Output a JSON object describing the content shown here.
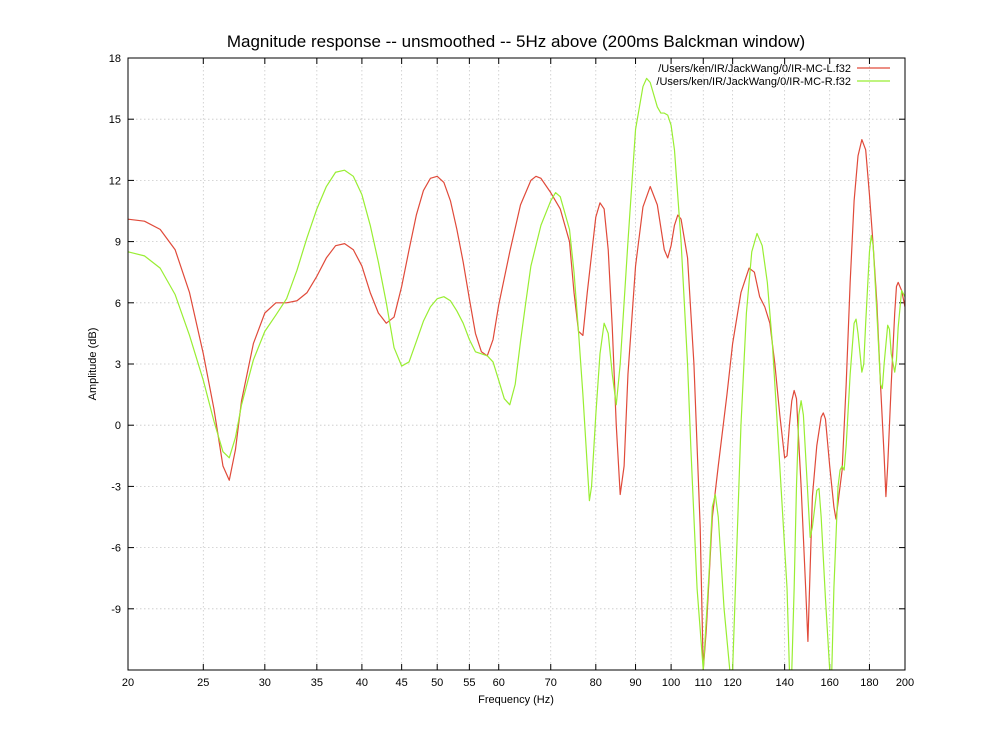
{
  "chart_data": {
    "type": "line",
    "title": "Magnitude response -- unsmoothed -- 5Hz above (200ms Balckman window)",
    "xlabel": "Frequency (Hz)",
    "ylabel": "Amplitude (dB)",
    "xscale": "log",
    "xlim": [
      20,
      200
    ],
    "ylim": [
      -12,
      18
    ],
    "xticks": [
      20,
      25,
      30,
      35,
      40,
      45,
      50,
      55,
      60,
      70,
      80,
      90,
      100,
      110,
      120,
      140,
      160,
      180,
      200
    ],
    "yticks": [
      -9,
      -6,
      -3,
      0,
      3,
      6,
      9,
      12,
      15,
      18
    ],
    "grid": true,
    "legend_position": "top-right",
    "series": [
      {
        "name": "/Users/ken/IR/JackWang/0/IR-MC-L.f32",
        "color": "#e04a3a",
        "points": [
          [
            20,
            10.1
          ],
          [
            21,
            10.0
          ],
          [
            22,
            9.6
          ],
          [
            23,
            8.6
          ],
          [
            24,
            6.5
          ],
          [
            25,
            3.5
          ],
          [
            25.8,
            0.8
          ],
          [
            26.5,
            -2.0
          ],
          [
            27,
            -2.7
          ],
          [
            27.5,
            -1.2
          ],
          [
            28,
            1.2
          ],
          [
            29,
            4.0
          ],
          [
            30,
            5.5
          ],
          [
            31,
            6.0
          ],
          [
            32,
            6.0
          ],
          [
            33,
            6.1
          ],
          [
            34,
            6.5
          ],
          [
            35,
            7.3
          ],
          [
            36,
            8.2
          ],
          [
            37,
            8.8
          ],
          [
            38,
            8.9
          ],
          [
            39,
            8.6
          ],
          [
            40,
            7.8
          ],
          [
            41,
            6.5
          ],
          [
            42,
            5.5
          ],
          [
            43,
            5.0
          ],
          [
            44,
            5.3
          ],
          [
            45,
            6.8
          ],
          [
            46,
            8.6
          ],
          [
            47,
            10.3
          ],
          [
            48,
            11.5
          ],
          [
            49,
            12.1
          ],
          [
            50,
            12.2
          ],
          [
            51,
            11.9
          ],
          [
            52,
            11.0
          ],
          [
            53,
            9.6
          ],
          [
            54,
            8.0
          ],
          [
            55,
            6.2
          ],
          [
            56,
            4.5
          ],
          [
            57,
            3.6
          ],
          [
            58,
            3.4
          ],
          [
            59,
            4.2
          ],
          [
            60,
            5.9
          ],
          [
            62,
            8.5
          ],
          [
            64,
            10.8
          ],
          [
            66,
            12.0
          ],
          [
            67,
            12.2
          ],
          [
            68,
            12.1
          ],
          [
            70,
            11.4
          ],
          [
            72,
            10.6
          ],
          [
            74,
            9.0
          ],
          [
            75,
            6.5
          ],
          [
            76,
            4.6
          ],
          [
            77,
            4.4
          ],
          [
            78,
            6.5
          ],
          [
            80,
            10.2
          ],
          [
            81,
            10.9
          ],
          [
            82,
            10.6
          ],
          [
            83,
            8.6
          ],
          [
            84,
            4.8
          ],
          [
            85,
            0.0
          ],
          [
            86,
            -3.4
          ],
          [
            87,
            -2.0
          ],
          [
            88,
            2.5
          ],
          [
            90,
            7.8
          ],
          [
            92,
            10.7
          ],
          [
            94,
            11.7
          ],
          [
            96,
            10.8
          ],
          [
            98,
            8.6
          ],
          [
            99,
            8.2
          ],
          [
            100,
            8.8
          ],
          [
            101,
            9.8
          ],
          [
            102,
            10.3
          ],
          [
            103,
            10.1
          ],
          [
            105,
            8.2
          ],
          [
            107,
            3.0
          ],
          [
            109,
            -5.0
          ],
          [
            110,
            -12.0
          ],
          [
            111,
            -10.0
          ],
          [
            113,
            -4.5
          ],
          [
            115,
            -2.0
          ],
          [
            118,
            1.5
          ],
          [
            120,
            4.0
          ],
          [
            123,
            6.5
          ],
          [
            126,
            7.7
          ],
          [
            128,
            7.5
          ],
          [
            130,
            6.3
          ],
          [
            132,
            5.8
          ],
          [
            134,
            5.0
          ],
          [
            136,
            3.0
          ],
          [
            138,
            0.5
          ],
          [
            140,
            -1.6
          ],
          [
            141,
            -1.5
          ],
          [
            142,
            0.0
          ],
          [
            143,
            1.2
          ],
          [
            144,
            1.7
          ],
          [
            145,
            1.3
          ],
          [
            147,
            -3.0
          ],
          [
            149,
            -8.0
          ],
          [
            150,
            -10.6
          ],
          [
            151,
            -7.0
          ],
          [
            152,
            -3.5
          ],
          [
            154,
            -1.0
          ],
          [
            156,
            0.4
          ],
          [
            157,
            0.6
          ],
          [
            158,
            0.3
          ],
          [
            160,
            -2.0
          ],
          [
            162,
            -4.0
          ],
          [
            163,
            -4.6
          ],
          [
            164,
            -3.8
          ],
          [
            166,
            -2.2
          ],
          [
            168,
            2.0
          ],
          [
            170,
            7.0
          ],
          [
            172,
            11.0
          ],
          [
            174,
            13.2
          ],
          [
            176,
            14.0
          ],
          [
            178,
            13.5
          ],
          [
            180,
            11.3
          ],
          [
            182,
            8.8
          ],
          [
            184,
            6.0
          ],
          [
            186,
            2.0
          ],
          [
            188,
            -1.5
          ],
          [
            189,
            -3.5
          ],
          [
            190,
            -2.0
          ],
          [
            192,
            2.0
          ],
          [
            194,
            5.5
          ],
          [
            195,
            6.8
          ],
          [
            196,
            7.0
          ],
          [
            198,
            6.6
          ],
          [
            200,
            5.8
          ]
        ]
      },
      {
        "name": "/Users/ken/IR/JackWang/0/IR-MC-R.f32",
        "color": "#99ee33",
        "points": [
          [
            20,
            8.5
          ],
          [
            21,
            8.3
          ],
          [
            22,
            7.7
          ],
          [
            23,
            6.4
          ],
          [
            24,
            4.4
          ],
          [
            25,
            2.2
          ],
          [
            25.8,
            0.2
          ],
          [
            26.5,
            -1.3
          ],
          [
            27,
            -1.6
          ],
          [
            27.5,
            -0.6
          ],
          [
            28,
            1.0
          ],
          [
            29,
            3.2
          ],
          [
            30,
            4.6
          ],
          [
            31,
            5.4
          ],
          [
            32,
            6.2
          ],
          [
            33,
            7.6
          ],
          [
            34,
            9.2
          ],
          [
            35,
            10.6
          ],
          [
            36,
            11.7
          ],
          [
            37,
            12.4
          ],
          [
            38,
            12.5
          ],
          [
            39,
            12.2
          ],
          [
            40,
            11.3
          ],
          [
            41,
            9.8
          ],
          [
            42,
            8.0
          ],
          [
            43,
            6.0
          ],
          [
            44,
            3.8
          ],
          [
            45,
            2.9
          ],
          [
            46,
            3.1
          ],
          [
            47,
            4.1
          ],
          [
            48,
            5.1
          ],
          [
            49,
            5.8
          ],
          [
            50,
            6.2
          ],
          [
            51,
            6.3
          ],
          [
            52,
            6.1
          ],
          [
            53,
            5.6
          ],
          [
            54,
            5.0
          ],
          [
            55,
            4.2
          ],
          [
            56,
            3.6
          ],
          [
            57,
            3.5
          ],
          [
            58,
            3.4
          ],
          [
            59,
            3.1
          ],
          [
            60,
            2.2
          ],
          [
            61,
            1.3
          ],
          [
            62,
            1.0
          ],
          [
            63,
            2.0
          ],
          [
            64,
            4.1
          ],
          [
            65,
            6.0
          ],
          [
            66,
            7.8
          ],
          [
            68,
            9.8
          ],
          [
            70,
            11.0
          ],
          [
            71,
            11.4
          ],
          [
            72,
            11.2
          ],
          [
            74,
            9.6
          ],
          [
            75,
            7.5
          ],
          [
            76,
            4.6
          ],
          [
            77,
            1.5
          ],
          [
            78,
            -2.0
          ],
          [
            78.5,
            -3.7
          ],
          [
            79,
            -3.0
          ],
          [
            80,
            0.5
          ],
          [
            81,
            3.5
          ],
          [
            82,
            5.0
          ],
          [
            83,
            4.5
          ],
          [
            84,
            2.5
          ],
          [
            85,
            1.0
          ],
          [
            86,
            3.0
          ],
          [
            88,
            9.0
          ],
          [
            90,
            14.5
          ],
          [
            92,
            16.6
          ],
          [
            93,
            17.0
          ],
          [
            94,
            16.8
          ],
          [
            96,
            15.6
          ],
          [
            97,
            15.3
          ],
          [
            98,
            15.3
          ],
          [
            99,
            15.2
          ],
          [
            100,
            14.7
          ],
          [
            101,
            13.5
          ],
          [
            103,
            9.0
          ],
          [
            105,
            3.0
          ],
          [
            106,
            -1.0
          ],
          [
            108,
            -8.0
          ],
          [
            110,
            -12.0
          ],
          [
            112,
            -7.0
          ],
          [
            113,
            -4.0
          ],
          [
            114,
            -3.4
          ],
          [
            115,
            -4.5
          ],
          [
            117,
            -9.0
          ],
          [
            119,
            -12.0
          ],
          [
            120,
            -12.0
          ],
          [
            121,
            -8.0
          ],
          [
            123,
            0.0
          ],
          [
            125,
            5.5
          ],
          [
            127,
            8.5
          ],
          [
            129,
            9.4
          ],
          [
            131,
            8.8
          ],
          [
            133,
            7.0
          ],
          [
            135,
            4.0
          ],
          [
            137,
            0.0
          ],
          [
            139,
            -4.0
          ],
          [
            141,
            -8.0
          ],
          [
            142,
            -12.0
          ],
          [
            143,
            -12.0
          ],
          [
            144,
            -8.0
          ],
          [
            145,
            -3.0
          ],
          [
            146,
            0.5
          ],
          [
            147,
            1.2
          ],
          [
            148,
            0.5
          ],
          [
            150,
            -3.5
          ],
          [
            151,
            -5.5
          ],
          [
            152,
            -5.0
          ],
          [
            154,
            -3.2
          ],
          [
            155,
            -3.1
          ],
          [
            156,
            -4.5
          ],
          [
            158,
            -8.5
          ],
          [
            160,
            -12.0
          ],
          [
            161,
            -12.0
          ],
          [
            162,
            -8.0
          ],
          [
            164,
            -3.0
          ],
          [
            165,
            -2.2
          ],
          [
            166,
            -2.0
          ],
          [
            167,
            -2.2
          ],
          [
            168,
            -1.0
          ],
          [
            170,
            2.5
          ],
          [
            172,
            5.0
          ],
          [
            173,
            5.2
          ],
          [
            174,
            4.5
          ],
          [
            176,
            2.6
          ],
          [
            177,
            3.0
          ],
          [
            178,
            5.0
          ],
          [
            180,
            8.5
          ],
          [
            181,
            9.3
          ],
          [
            182,
            8.8
          ],
          [
            184,
            5.5
          ],
          [
            186,
            2.0
          ],
          [
            187,
            1.8
          ],
          [
            188,
            3.0
          ],
          [
            190,
            4.9
          ],
          [
            191,
            4.7
          ],
          [
            192,
            3.5
          ],
          [
            194,
            2.6
          ],
          [
            195,
            3.2
          ],
          [
            196,
            4.8
          ],
          [
            198,
            6.6
          ],
          [
            200,
            6.3
          ]
        ]
      }
    ]
  }
}
